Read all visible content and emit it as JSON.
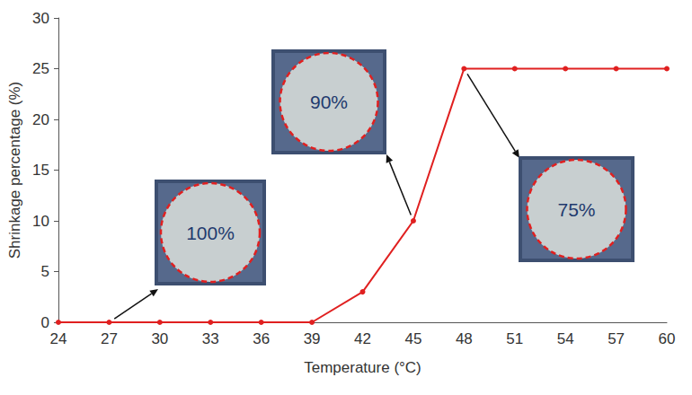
{
  "chart_data": {
    "type": "line",
    "x_label": "Temperature (°C)",
    "y_label": "Shrinkage percentage (%)",
    "x": [
      24,
      27,
      30,
      33,
      36,
      39,
      42,
      45,
      48,
      51,
      54,
      57,
      60
    ],
    "values": [
      0,
      0,
      0,
      0,
      0,
      0,
      3,
      10,
      25,
      25,
      25,
      25,
      25
    ],
    "color": "#e02020",
    "marker": "circle",
    "xlim": [
      24,
      60
    ],
    "xticks": [
      24,
      27,
      30,
      33,
      36,
      39,
      42,
      45,
      48,
      51,
      54,
      57,
      60
    ],
    "ylim": [
      0,
      30
    ],
    "yticks": [
      0,
      5,
      10,
      15,
      20,
      25,
      30
    ],
    "grid": false,
    "annotations": [
      {
        "text": "100%",
        "x": 27,
        "y": 0
      },
      {
        "text": "90%",
        "x": 45,
        "y": 10
      },
      {
        "text": "75%",
        "x": 48,
        "y": 25
      }
    ]
  }
}
